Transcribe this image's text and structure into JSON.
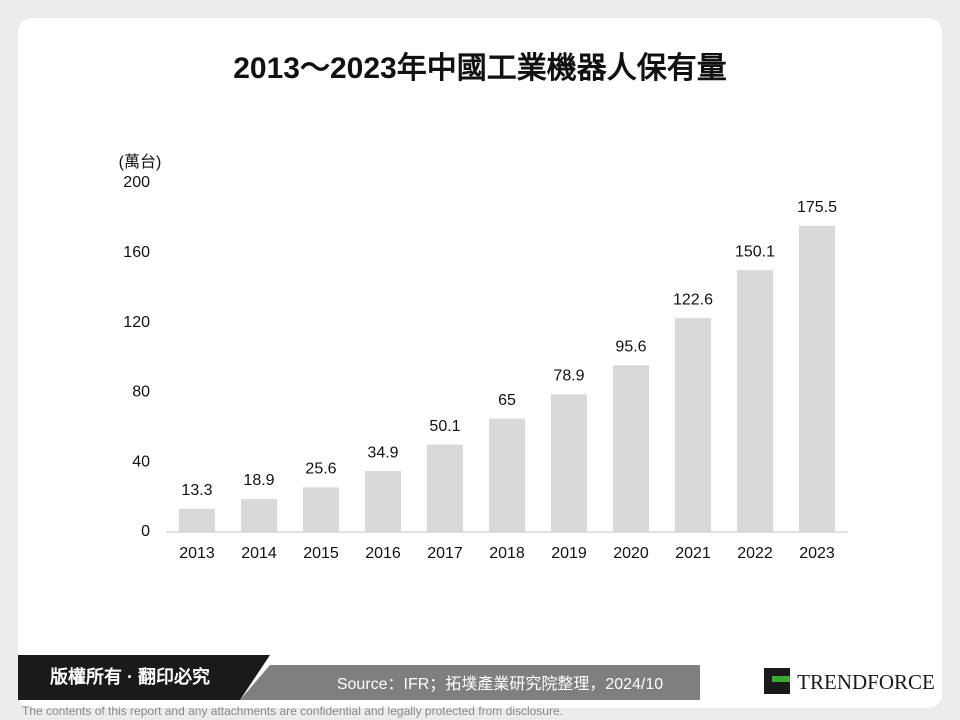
{
  "chart_data": {
    "type": "bar",
    "title": "2013～2023年中國工業機器人保有量",
    "y_label": "(萬台)",
    "categories": [
      "2013",
      "2014",
      "2015",
      "2016",
      "2017",
      "2018",
      "2019",
      "2020",
      "2021",
      "2022",
      "2023"
    ],
    "values": [
      13.3,
      18.9,
      25.6,
      34.9,
      50.1,
      65,
      78.9,
      95.6,
      122.6,
      150.1,
      175.5
    ],
    "color": "#d9d9d9",
    "ylim": [
      0,
      200
    ],
    "yticks": [
      0,
      40,
      80,
      120,
      160,
      200
    ],
    "grid": false
  },
  "footer": {
    "rights": "版權所有 · 翻印必究",
    "source": "Source：IFR；拓墣產業研究院整理，2024/10",
    "logo": "TRENDFORCE",
    "disclaimer": "The contents of this report and any attachments are confidential and legally protected from disclosure."
  }
}
